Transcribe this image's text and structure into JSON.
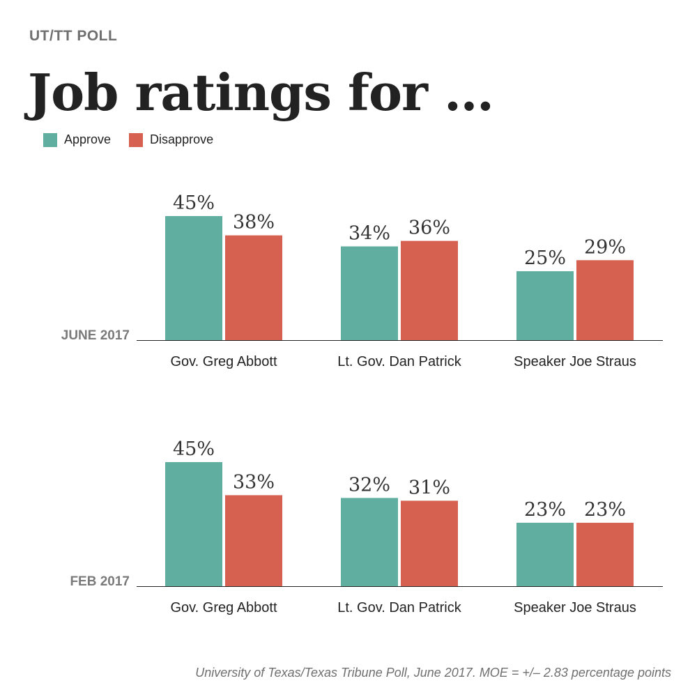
{
  "header": {
    "kicker": "UT/TT POLL",
    "title": "Job ratings for …"
  },
  "legend": [
    {
      "label": "Approve",
      "color": "#5fae9f"
    },
    {
      "label": "Disapprove",
      "color": "#d66150"
    }
  ],
  "chart_data": [
    {
      "type": "bar",
      "period_label": "JUNE 2017",
      "categories": [
        "Gov. Greg Abbott",
        "Lt. Gov. Dan Patrick",
        "Speaker Joe Straus"
      ],
      "series": [
        {
          "name": "Approve",
          "values": [
            45,
            34,
            25
          ],
          "labels": [
            "45%",
            "34%",
            "25%"
          ],
          "color": "#5fae9f"
        },
        {
          "name": "Disapprove",
          "values": [
            38,
            36,
            29
          ],
          "labels": [
            "38%",
            "36%",
            "29%"
          ],
          "color": "#d66150"
        }
      ],
      "ylim": [
        0,
        45
      ]
    },
    {
      "type": "bar",
      "period_label": "FEB 2017",
      "categories": [
        "Gov. Greg Abbott",
        "Lt. Gov. Dan Patrick",
        "Speaker Joe Straus"
      ],
      "series": [
        {
          "name": "Approve",
          "values": [
            45,
            32,
            23
          ],
          "labels": [
            "45%",
            "32%",
            "23%"
          ],
          "color": "#5fae9f"
        },
        {
          "name": "Disapprove",
          "values": [
            33,
            31,
            23
          ],
          "labels": [
            "33%",
            "31%",
            "23%"
          ],
          "color": "#d66150"
        }
      ],
      "ylim": [
        0,
        45
      ]
    }
  ],
  "footer": {
    "source": "University of Texas/Texas Tribune Poll, June 2017. MOE = +/– 2.83 percentage points"
  }
}
